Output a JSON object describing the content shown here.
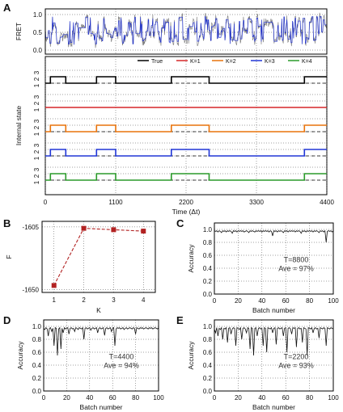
{
  "colors": {
    "trace": "#2233cc",
    "raw": "#777777",
    "true": "#000000",
    "k1": "#d62728",
    "k2": "#e8730c",
    "k3": "#2036d6",
    "k4": "#2a9a2a",
    "marker": "#b22222"
  },
  "chart_data": [
    {
      "id": "A",
      "type": "line",
      "panel_label": "A",
      "xlabel": "Time (Δt)",
      "x_ticks": [
        "0",
        "1100",
        "2200",
        "3300",
        "4400"
      ],
      "xlim": [
        0,
        4400
      ],
      "fret": {
        "ylabel": "FRET",
        "ylim": [
          0,
          1.0
        ],
        "y_ticks": [
          "0.0",
          "0.5",
          "1.0"
        ]
      },
      "state_ylabel": "Internal state",
      "state_ticks": [
        "1",
        "2",
        "3"
      ],
      "legend": [
        "True",
        "K=1",
        "K=2",
        "K=3",
        "K=4"
      ],
      "state_series": [
        {
          "name": "True",
          "steps": [
            [
              0,
              1
            ],
            [
              80,
              2
            ],
            [
              320,
              1
            ],
            [
              800,
              2
            ],
            [
              1100,
              1
            ],
            [
              1970,
              2
            ],
            [
              2560,
              1
            ],
            [
              4050,
              2
            ],
            [
              4400,
              2
            ]
          ]
        },
        {
          "name": "K=1",
          "steps": [
            [
              0,
              1
            ],
            [
              4400,
              1
            ]
          ]
        },
        {
          "name": "K=2",
          "steps": [
            [
              0,
              1
            ],
            [
              80,
              2
            ],
            [
              320,
              1
            ],
            [
              800,
              2
            ],
            [
              1100,
              1
            ],
            [
              1970,
              2
            ],
            [
              2560,
              1
            ],
            [
              4050,
              2
            ],
            [
              4400,
              2
            ]
          ]
        },
        {
          "name": "K=3",
          "steps": [
            [
              0,
              1
            ],
            [
              80,
              2
            ],
            [
              320,
              1
            ],
            [
              800,
              2
            ],
            [
              1100,
              1
            ],
            [
              1970,
              2
            ],
            [
              2560,
              1
            ],
            [
              4050,
              2
            ],
            [
              4400,
              2
            ]
          ]
        },
        {
          "name": "K=4",
          "steps": [
            [
              0,
              1
            ],
            [
              80,
              2
            ],
            [
              320,
              1
            ],
            [
              800,
              2
            ],
            [
              1100,
              1
            ],
            [
              1970,
              2
            ],
            [
              2560,
              1
            ],
            [
              4050,
              2
            ],
            [
              4400,
              2
            ]
          ]
        }
      ],
      "grid": true
    },
    {
      "id": "B",
      "type": "scatter",
      "panel_label": "B",
      "xlabel": "K",
      "ylabel": "F",
      "x": [
        1,
        2,
        3,
        4
      ],
      "y": [
        -1647,
        -1606,
        -1607,
        -1608
      ],
      "x_ticks": [
        "1",
        "2",
        "3",
        "4"
      ],
      "y_ticks": [
        "-1650",
        "-1605"
      ],
      "xlim": [
        0.6,
        4.4
      ],
      "ylim": [
        -1652,
        -1601
      ],
      "grid": true
    },
    {
      "id": "C",
      "type": "line",
      "panel_label": "C",
      "xlabel": "Batch number",
      "ylabel": "Accuracy",
      "annotations": [
        "T=8800",
        "Ave = 97%"
      ],
      "x_ticks": [
        "0",
        "20",
        "40",
        "60",
        "80",
        "100"
      ],
      "y_ticks": [
        "0.0",
        "0.2",
        "0.4",
        "0.6",
        "0.8",
        "1.0"
      ],
      "xlim": [
        0,
        100
      ],
      "ylim": [
        0,
        1.1
      ],
      "series": [
        {
          "values": [
            0.98,
            0.97,
            0.98,
            0.96,
            0.98,
            0.97,
            0.95,
            0.98,
            0.97,
            0.98,
            0.96,
            0.98,
            0.97,
            0.98,
            0.97,
            0.94,
            0.98,
            0.97,
            0.98,
            0.96,
            0.98,
            0.97,
            0.98,
            0.97,
            0.98,
            0.96,
            0.97,
            0.98,
            0.97,
            0.95,
            0.98,
            0.97,
            0.98,
            0.97,
            0.96,
            0.98,
            0.97,
            0.98,
            0.97,
            0.98,
            0.96,
            0.98,
            0.97,
            0.98,
            0.97,
            0.98,
            0.96,
            0.98,
            0.97,
            0.9,
            0.98,
            0.97,
            0.98,
            0.96,
            0.98,
            0.97,
            0.98,
            0.97,
            0.95,
            0.98,
            0.97,
            0.98,
            0.96,
            0.98,
            0.97,
            0.98,
            0.97,
            0.98,
            0.96,
            0.98,
            0.97,
            0.98,
            0.97,
            0.94,
            0.98,
            0.97,
            0.98,
            0.96,
            0.98,
            0.97,
            0.98,
            0.97,
            0.98,
            0.96,
            0.98,
            0.97,
            0.98,
            0.97,
            0.95,
            0.98,
            0.97,
            0.98,
            0.96,
            0.98,
            0.8,
            0.97,
            0.98,
            0.97,
            0.98,
            0.96,
            0.98
          ]
        }
      ],
      "grid": true
    },
    {
      "id": "D",
      "type": "line",
      "panel_label": "D",
      "xlabel": "Batch number",
      "ylabel": "Accuracy",
      "annotations": [
        "T=4400",
        "Ave = 94%"
      ],
      "x_ticks": [
        "0",
        "20",
        "40",
        "60",
        "80",
        "100"
      ],
      "y_ticks": [
        "0.0",
        "0.2",
        "0.4",
        "0.6",
        "0.8",
        "1.0"
      ],
      "xlim": [
        0,
        100
      ],
      "ylim": [
        0,
        1.1
      ],
      "series": [
        {
          "values": [
            0.97,
            0.95,
            0.98,
            0.96,
            0.85,
            0.97,
            0.98,
            0.92,
            0.97,
            0.7,
            0.98,
            0.97,
            0.55,
            0.96,
            0.98,
            0.65,
            0.97,
            0.9,
            0.98,
            0.96,
            0.97,
            0.98,
            0.88,
            0.97,
            0.98,
            0.96,
            0.97,
            0.92,
            0.98,
            0.97,
            0.95,
            0.98,
            0.97,
            0.96,
            0.98,
            0.8,
            0.97,
            0.98,
            0.96,
            0.97,
            0.98,
            0.94,
            0.97,
            0.98,
            0.96,
            0.97,
            0.98,
            0.9,
            0.97,
            0.98,
            0.96,
            0.97,
            0.98,
            0.86,
            0.97,
            0.98,
            0.96,
            0.97,
            0.98,
            0.92,
            0.97,
            0.98,
            0.7,
            0.96,
            0.98,
            0.97,
            0.98,
            0.96,
            0.97,
            0.98,
            0.95,
            0.97,
            0.98,
            0.96,
            0.97,
            0.98,
            0.97,
            0.96,
            0.98,
            0.97,
            0.88,
            0.98,
            0.97,
            0.96,
            0.98,
            0.97,
            0.98,
            0.96,
            0.97,
            0.98,
            0.97,
            0.96,
            0.98,
            0.97,
            0.98,
            0.96,
            0.97,
            0.98,
            0.97,
            0.96,
            0.98
          ]
        }
      ],
      "grid": true
    },
    {
      "id": "E",
      "type": "line",
      "panel_label": "E",
      "xlabel": "Batch number",
      "ylabel": "Accuracy",
      "annotations": [
        "T=2200",
        "Ave = 93%"
      ],
      "x_ticks": [
        "0",
        "20",
        "40",
        "60",
        "80",
        "100"
      ],
      "y_ticks": [
        "0.0",
        "0.2",
        "0.4",
        "0.6",
        "0.8",
        "1.0"
      ],
      "xlim": [
        0,
        100
      ],
      "ylim": [
        0,
        1.1
      ],
      "series": [
        {
          "values": [
            0.96,
            0.9,
            0.98,
            0.85,
            0.97,
            0.95,
            0.98,
            0.8,
            0.97,
            0.96,
            0.98,
            0.75,
            0.97,
            0.98,
            0.88,
            0.96,
            0.98,
            0.97,
            0.7,
            0.98,
            0.97,
            0.95,
            0.98,
            0.8,
            0.97,
            0.98,
            0.96,
            0.9,
            0.98,
            0.97,
            0.65,
            0.98,
            0.97,
            0.55,
            0.97,
            0.98,
            0.85,
            0.97,
            0.98,
            0.96,
            0.97,
            0.7,
            0.98,
            0.97,
            0.6,
            0.98,
            0.97,
            0.96,
            0.98,
            0.9,
            0.97,
            0.98,
            0.72,
            0.97,
            0.98,
            0.96,
            0.97,
            0.98,
            0.85,
            0.97,
            0.98,
            0.6,
            0.97,
            0.98,
            0.96,
            0.88,
            0.98,
            0.97,
            0.98,
            0.68,
            0.97,
            0.98,
            0.96,
            0.97,
            0.75,
            0.98,
            0.97,
            0.96,
            0.55,
            0.98,
            0.97,
            0.96,
            0.98,
            0.9,
            0.97,
            0.98,
            0.96,
            0.97,
            0.82,
            0.98,
            0.97,
            0.96,
            0.98,
            0.97,
            0.7,
            0.98,
            0.97,
            0.96,
            0.98,
            0.97,
            0.96
          ]
        }
      ],
      "grid": true
    }
  ]
}
